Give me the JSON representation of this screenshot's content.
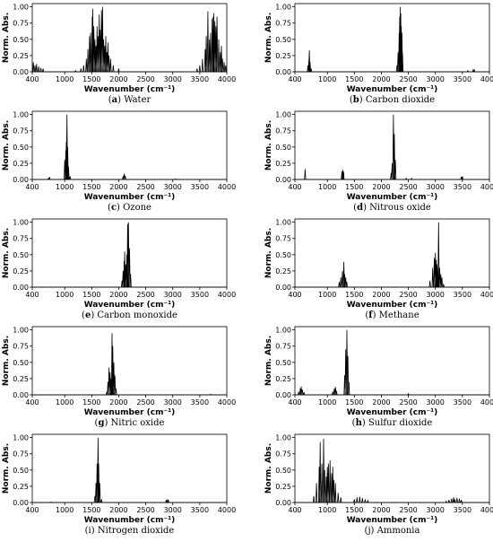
{
  "figure": {
    "x_axis_label": "Wavenumber (cm⁻¹)",
    "y_axis_label": "Norm. Abs.",
    "x_ticks": [
      "400",
      "1000",
      "1500",
      "2000",
      "2500",
      "3000",
      "3500",
      "4000"
    ],
    "y_ticks": [
      "0.00",
      "0.25",
      "0.50",
      "0.75",
      "1.00"
    ]
  },
  "chart_data": [
    {
      "type": "line",
      "caption_tag": "(a)",
      "caption_tag_bold": "a",
      "caption_name": "Water",
      "xlim": [
        400,
        4000
      ],
      "ylim": [
        0,
        1.05
      ],
      "peaks": [
        [
          420,
          0.15
        ],
        [
          450,
          0.1
        ],
        [
          480,
          0.12
        ],
        [
          520,
          0.08
        ],
        [
          560,
          0.06
        ],
        [
          600,
          0.05
        ],
        [
          1200,
          0.02
        ],
        [
          1300,
          0.05
        ],
        [
          1350,
          0.1
        ],
        [
          1400,
          0.2
        ],
        [
          1430,
          0.35
        ],
        [
          1460,
          0.55
        ],
        [
          1480,
          0.6
        ],
        [
          1510,
          0.85
        ],
        [
          1520,
          0.97
        ],
        [
          1540,
          0.7
        ],
        [
          1560,
          0.5
        ],
        [
          1580,
          0.4
        ],
        [
          1600,
          0.7
        ],
        [
          1620,
          0.55
        ],
        [
          1640,
          0.88
        ],
        [
          1660,
          0.65
        ],
        [
          1680,
          0.95
        ],
        [
          1700,
          1.0
        ],
        [
          1720,
          0.5
        ],
        [
          1740,
          0.4
        ],
        [
          1760,
          0.55
        ],
        [
          1780,
          0.3
        ],
        [
          1800,
          0.45
        ],
        [
          1820,
          0.25
        ],
        [
          1850,
          0.2
        ],
        [
          1900,
          0.1
        ],
        [
          2000,
          0.05
        ],
        [
          3450,
          0.05
        ],
        [
          3500,
          0.1
        ],
        [
          3550,
          0.2
        ],
        [
          3600,
          0.35
        ],
        [
          3620,
          0.55
        ],
        [
          3650,
          0.93
        ],
        [
          3680,
          0.5
        ],
        [
          3700,
          0.6
        ],
        [
          3730,
          0.82
        ],
        [
          3750,
          0.85
        ],
        [
          3760,
          0.9
        ],
        [
          3780,
          0.78
        ],
        [
          3800,
          0.7
        ],
        [
          3820,
          0.85
        ],
        [
          3850,
          0.5
        ],
        [
          3880,
          0.3
        ],
        [
          3900,
          0.4
        ],
        [
          3920,
          0.2
        ],
        [
          3950,
          0.15
        ],
        [
          3980,
          0.1
        ]
      ]
    },
    {
      "type": "line",
      "caption_tag": "(b)",
      "caption_tag_bold": "b",
      "caption_name": "Carbon dioxide",
      "xlim": [
        400,
        4000
      ],
      "ylim": [
        0,
        1.05
      ],
      "peaks": [
        [
          640,
          0.1
        ],
        [
          660,
          0.2
        ],
        [
          667,
          0.33
        ],
        [
          680,
          0.15
        ],
        [
          700,
          0.05
        ],
        [
          2290,
          0.1
        ],
        [
          2310,
          0.3
        ],
        [
          2330,
          0.6
        ],
        [
          2340,
          0.85
        ],
        [
          2350,
          1.0
        ],
        [
          2360,
          0.9
        ],
        [
          2370,
          0.7
        ],
        [
          2380,
          0.6
        ],
        [
          2390,
          0.3
        ],
        [
          3600,
          0.02
        ],
        [
          3700,
          0.03
        ],
        [
          3720,
          0.03
        ]
      ]
    },
    {
      "type": "line",
      "caption_tag": "(c)",
      "caption_tag_bold": "c",
      "caption_name": "Ozone",
      "xlim": [
        400,
        4000
      ],
      "ylim": [
        0,
        1.05
      ],
      "peaks": [
        [
          700,
          0.02
        ],
        [
          720,
          0.03
        ],
        [
          1000,
          0.3
        ],
        [
          1020,
          0.45
        ],
        [
          1030,
          0.58
        ],
        [
          1042,
          1.0
        ],
        [
          1055,
          0.5
        ],
        [
          1070,
          0.2
        ],
        [
          1100,
          0.05
        ],
        [
          2080,
          0.05
        ],
        [
          2100,
          0.09
        ],
        [
          2120,
          0.06
        ],
        [
          3050,
          0.01
        ]
      ]
    },
    {
      "type": "line",
      "caption_tag": "(d)",
      "caption_tag_bold": "d",
      "caption_name": "Nitrous oxide",
      "xlim": [
        400,
        4000
      ],
      "ylim": [
        0,
        1.05
      ],
      "peaks": [
        [
          589,
          0.16
        ],
        [
          1270,
          0.12
        ],
        [
          1285,
          0.15
        ],
        [
          1300,
          0.12
        ],
        [
          2180,
          0.1
        ],
        [
          2200,
          0.25
        ],
        [
          2224,
          1.0
        ],
        [
          2240,
          0.7
        ],
        [
          2260,
          0.3
        ],
        [
          2460,
          0.02
        ],
        [
          2560,
          0.02
        ],
        [
          3480,
          0.04
        ],
        [
          3500,
          0.05
        ]
      ]
    },
    {
      "type": "line",
      "caption_tag": "(e)",
      "caption_tag_bold": "e",
      "caption_name": "Carbon monoxide",
      "xlim": [
        400,
        4000
      ],
      "ylim": [
        0,
        1.05
      ],
      "peaks": [
        [
          2060,
          0.1
        ],
        [
          2080,
          0.25
        ],
        [
          2100,
          0.4
        ],
        [
          2110,
          0.55
        ],
        [
          2130,
          0.35
        ],
        [
          2150,
          0.5
        ],
        [
          2165,
          0.97
        ],
        [
          2180,
          1.0
        ],
        [
          2200,
          0.6
        ],
        [
          2220,
          0.2
        ]
      ]
    },
    {
      "type": "line",
      "caption_tag": "(f)",
      "caption_tag_bold": "f",
      "caption_name": "Methane",
      "xlim": [
        400,
        4000
      ],
      "ylim": [
        0,
        1.05
      ],
      "peaks": [
        [
          1220,
          0.08
        ],
        [
          1250,
          0.15
        ],
        [
          1280,
          0.25
        ],
        [
          1306,
          0.39
        ],
        [
          1320,
          0.2
        ],
        [
          1340,
          0.15
        ],
        [
          1360,
          0.08
        ],
        [
          2900,
          0.1
        ],
        [
          2950,
          0.3
        ],
        [
          2980,
          0.45
        ],
        [
          3000,
          0.53
        ],
        [
          3017,
          0.42
        ],
        [
          3030,
          0.35
        ],
        [
          3050,
          0.3
        ],
        [
          3060,
          1.0
        ],
        [
          3080,
          0.3
        ],
        [
          3100,
          0.2
        ],
        [
          3120,
          0.15
        ],
        [
          3150,
          0.05
        ]
      ]
    },
    {
      "type": "line",
      "caption_tag": "(g)",
      "caption_tag_bold": "g",
      "caption_name": "Nitric oxide",
      "xlim": [
        400,
        4000
      ],
      "ylim": [
        0,
        1.05
      ],
      "peaks": [
        [
          1780,
          0.05
        ],
        [
          1800,
          0.2
        ],
        [
          1820,
          0.42
        ],
        [
          1840,
          0.35
        ],
        [
          1860,
          0.25
        ],
        [
          1876,
          0.95
        ],
        [
          1890,
          0.75
        ],
        [
          1910,
          0.5
        ],
        [
          1930,
          0.3
        ],
        [
          1950,
          0.1
        ],
        [
          3700,
          0.01
        ]
      ]
    },
    {
      "type": "line",
      "caption_tag": "(h)",
      "caption_tag_bold": "h",
      "caption_name": "Sulfur dioxide",
      "xlim": [
        400,
        4000
      ],
      "ylim": [
        0,
        1.05
      ],
      "peaks": [
        [
          470,
          0.05
        ],
        [
          500,
          0.1
        ],
        [
          518,
          0.13
        ],
        [
          540,
          0.08
        ],
        [
          570,
          0.04
        ],
        [
          1100,
          0.05
        ],
        [
          1130,
          0.1
        ],
        [
          1151,
          0.12
        ],
        [
          1170,
          0.06
        ],
        [
          1320,
          0.3
        ],
        [
          1340,
          0.7
        ],
        [
          1362,
          1.0
        ],
        [
          1380,
          0.6
        ],
        [
          1400,
          0.2
        ],
        [
          2500,
          0.02
        ]
      ]
    },
    {
      "type": "line",
      "caption_tag": "(i)",
      "caption_tag_bold": "",
      "caption_name": "Nitrogen dioxide",
      "xlim": [
        400,
        4000
      ],
      "ylim": [
        0,
        1.05
      ],
      "peaks": [
        [
          750,
          0.01
        ],
        [
          1560,
          0.1
        ],
        [
          1580,
          0.3
        ],
        [
          1600,
          0.6
        ],
        [
          1617,
          1.0
        ],
        [
          1630,
          0.6
        ],
        [
          1650,
          0.3
        ],
        [
          1680,
          0.05
        ],
        [
          2880,
          0.04
        ],
        [
          2906,
          0.05
        ],
        [
          2920,
          0.03
        ]
      ]
    },
    {
      "type": "line",
      "caption_tag": "(j)",
      "caption_tag_bold": "",
      "caption_name": "Ammonia",
      "xlim": [
        400,
        4000
      ],
      "ylim": [
        0,
        1.05
      ],
      "peaks": [
        [
          750,
          0.1
        ],
        [
          800,
          0.3
        ],
        [
          850,
          0.55
        ],
        [
          868,
          0.93
        ],
        [
          900,
          0.6
        ],
        [
          931,
          0.98
        ],
        [
          950,
          0.5
        ],
        [
          980,
          0.4
        ],
        [
          1000,
          0.55
        ],
        [
          1020,
          0.6
        ],
        [
          1050,
          0.65
        ],
        [
          1080,
          0.45
        ],
        [
          1100,
          0.55
        ],
        [
          1120,
          0.35
        ],
        [
          1150,
          0.3
        ],
        [
          1200,
          0.15
        ],
        [
          1250,
          0.08
        ],
        [
          1500,
          0.05
        ],
        [
          1550,
          0.08
        ],
        [
          1600,
          0.09
        ],
        [
          1650,
          0.07
        ],
        [
          1700,
          0.05
        ],
        [
          1750,
          0.03
        ],
        [
          3200,
          0.02
        ],
        [
          3250,
          0.04
        ],
        [
          3300,
          0.06
        ],
        [
          3337,
          0.08
        ],
        [
          3360,
          0.05
        ],
        [
          3400,
          0.07
        ],
        [
          3444,
          0.06
        ],
        [
          3480,
          0.04
        ]
      ]
    }
  ]
}
